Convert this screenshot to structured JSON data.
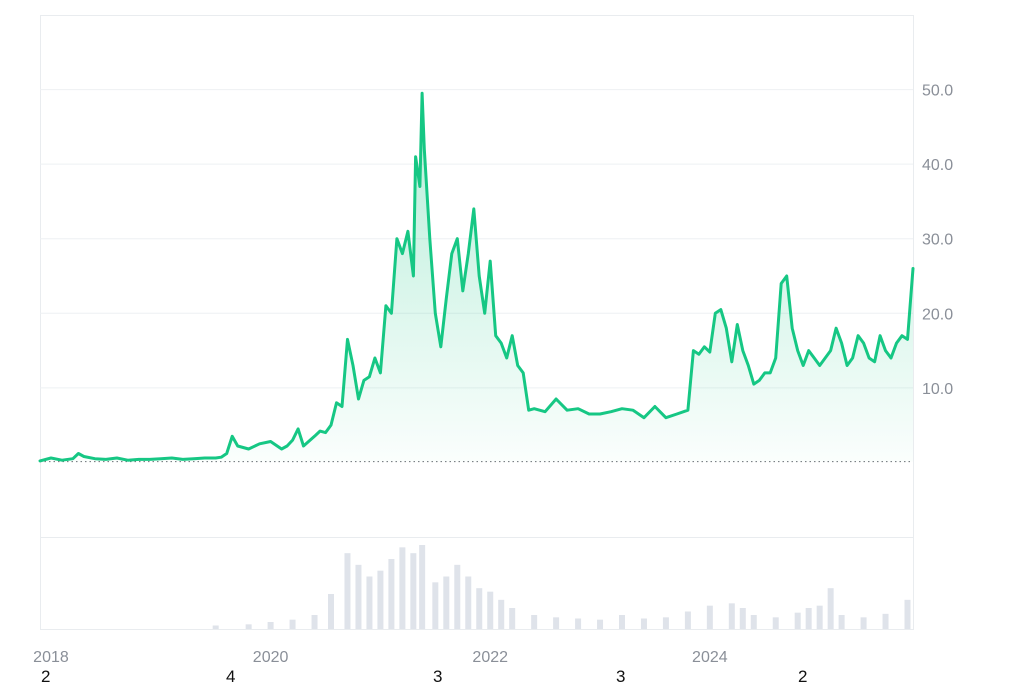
{
  "chart_data": {
    "type": "area",
    "title": "",
    "xlabel": "",
    "ylabel": "",
    "line_color": "#16c784",
    "grid": true,
    "xlim": [
      2017.9,
      2025.85
    ],
    "ylim": [
      -10,
      60
    ],
    "y_ticks": [
      {
        "value": 10,
        "label": "10.0"
      },
      {
        "value": 20,
        "label": "20.0"
      },
      {
        "value": 30,
        "label": "30.0"
      },
      {
        "value": 40,
        "label": "40.0"
      },
      {
        "value": 50,
        "label": "50.0"
      }
    ],
    "x_ticks": [
      {
        "value": 2018.0,
        "label": "2018"
      },
      {
        "value": 2020.0,
        "label": "2020"
      },
      {
        "value": 2022.0,
        "label": "2022"
      },
      {
        "value": 2024.0,
        "label": "2024"
      }
    ],
    "baseline_value": 0.1,
    "price": {
      "x": [
        2017.9,
        2018.0,
        2018.1,
        2018.2,
        2018.25,
        2018.3,
        2018.4,
        2018.5,
        2018.6,
        2018.7,
        2018.8,
        2018.9,
        2019.0,
        2019.1,
        2019.2,
        2019.3,
        2019.4,
        2019.5,
        2019.55,
        2019.6,
        2019.65,
        2019.7,
        2019.8,
        2019.9,
        2020.0,
        2020.1,
        2020.15,
        2020.2,
        2020.25,
        2020.3,
        2020.4,
        2020.45,
        2020.5,
        2020.55,
        2020.6,
        2020.65,
        2020.7,
        2020.75,
        2020.8,
        2020.85,
        2020.9,
        2020.95,
        2021.0,
        2021.05,
        2021.1,
        2021.15,
        2021.2,
        2021.25,
        2021.3,
        2021.32,
        2021.36,
        2021.38,
        2021.4,
        2021.45,
        2021.5,
        2021.55,
        2021.6,
        2021.65,
        2021.7,
        2021.75,
        2021.8,
        2021.85,
        2021.9,
        2021.95,
        2022.0,
        2022.05,
        2022.1,
        2022.15,
        2022.2,
        2022.25,
        2022.3,
        2022.35,
        2022.4,
        2022.5,
        2022.6,
        2022.7,
        2022.8,
        2022.9,
        2023.0,
        2023.1,
        2023.2,
        2023.3,
        2023.4,
        2023.5,
        2023.6,
        2023.7,
        2023.8,
        2023.85,
        2023.9,
        2023.95,
        2024.0,
        2024.05,
        2024.1,
        2024.15,
        2024.2,
        2024.25,
        2024.3,
        2024.35,
        2024.4,
        2024.45,
        2024.5,
        2024.55,
        2024.6,
        2024.65,
        2024.7,
        2024.75,
        2024.8,
        2024.85,
        2024.9,
        2024.95,
        2025.0,
        2025.05,
        2025.1,
        2025.15,
        2025.2,
        2025.25,
        2025.3,
        2025.35,
        2025.4,
        2025.45,
        2025.5,
        2025.55,
        2025.6,
        2025.65,
        2025.7,
        2025.75,
        2025.8,
        2025.85
      ],
      "y": [
        0.2,
        0.6,
        0.3,
        0.5,
        1.2,
        0.8,
        0.5,
        0.4,
        0.6,
        0.3,
        0.4,
        0.4,
        0.5,
        0.6,
        0.4,
        0.5,
        0.6,
        0.6,
        0.7,
        1.2,
        3.5,
        2.2,
        1.8,
        2.5,
        2.8,
        1.8,
        2.2,
        3.0,
        4.5,
        2.2,
        3.5,
        4.2,
        4.0,
        5.0,
        8.0,
        7.5,
        16.5,
        13.0,
        8.5,
        11.0,
        11.5,
        14.0,
        12.0,
        21.0,
        20.0,
        30.0,
        28.0,
        31.0,
        25.0,
        41.0,
        37.0,
        49.5,
        42.0,
        30.0,
        20.0,
        15.5,
        22.0,
        28.0,
        30.0,
        23.0,
        28.0,
        34.0,
        25.0,
        20.0,
        27.0,
        17.0,
        16.0,
        14.0,
        17.0,
        13.0,
        12.0,
        7.0,
        7.2,
        6.8,
        8.5,
        7.0,
        7.2,
        6.5,
        6.5,
        6.8,
        7.2,
        7.0,
        6.0,
        7.5,
        6.0,
        6.5,
        7.0,
        15.0,
        14.5,
        15.5,
        14.8,
        20.0,
        20.5,
        18.0,
        13.5,
        18.5,
        15.0,
        13.0,
        10.5,
        11.0,
        12.0,
        12.0,
        14.0,
        24.0,
        25.0,
        18.0,
        15.0,
        13.0,
        15.0,
        14.0,
        13.0,
        14.0,
        15.0,
        18.0,
        16.0,
        13.0,
        14.0,
        17.0,
        16.0,
        14.0,
        13.5,
        17.0,
        15.0,
        14.0,
        16.0,
        17.0,
        16.5,
        26.0
      ]
    },
    "volume": {
      "x": [
        2019.5,
        2019.8,
        2020.0,
        2020.2,
        2020.4,
        2020.55,
        2020.7,
        2020.8,
        2020.9,
        2021.0,
        2021.1,
        2021.2,
        2021.3,
        2021.38,
        2021.5,
        2021.6,
        2021.7,
        2021.8,
        2021.9,
        2022.0,
        2022.1,
        2022.2,
        2022.4,
        2022.6,
        2022.8,
        2023.0,
        2023.2,
        2023.4,
        2023.6,
        2023.8,
        2024.0,
        2024.2,
        2024.3,
        2024.4,
        2024.6,
        2024.8,
        2024.9,
        2025.0,
        2025.1,
        2025.2,
        2025.4,
        2025.6,
        2025.8
      ],
      "y": [
        0.3,
        0.4,
        0.6,
        0.8,
        1.2,
        3.0,
        6.5,
        5.5,
        4.5,
        5.0,
        6.0,
        7.0,
        6.5,
        7.2,
        4.0,
        4.5,
        5.5,
        4.5,
        3.5,
        3.2,
        2.5,
        1.8,
        1.2,
        1.0,
        0.9,
        0.8,
        1.2,
        0.9,
        1.0,
        1.5,
        2.0,
        2.2,
        1.8,
        1.2,
        1.0,
        1.4,
        1.8,
        2.0,
        3.5,
        1.2,
        1.0,
        1.3,
        2.5
      ]
    }
  },
  "footer_numbers": [
    "2",
    "4",
    "3",
    "3",
    "2"
  ]
}
